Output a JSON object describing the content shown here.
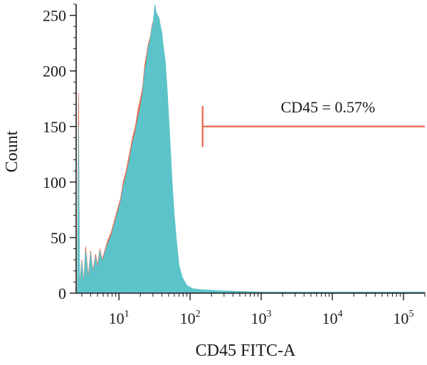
{
  "chart_data": {
    "type": "area",
    "title": "",
    "xlabel": "CD45 FITC-A",
    "ylabel": "Count",
    "x_scale": "log",
    "xlim": [
      2.5,
      200000
    ],
    "ylim": [
      0,
      260
    ],
    "grid": false,
    "x_ticks": [
      {
        "value": 10,
        "base": "10",
        "exp": "1"
      },
      {
        "value": 100,
        "base": "10",
        "exp": "2"
      },
      {
        "value": 1000,
        "base": "10",
        "exp": "3"
      },
      {
        "value": 10000,
        "base": "10",
        "exp": "4"
      },
      {
        "value": 100000,
        "base": "10",
        "exp": "5"
      }
    ],
    "y_ticks": [
      0,
      50,
      100,
      150,
      200,
      250
    ],
    "series": [
      {
        "color": "#e8654a",
        "x": [
          2.6,
          2.7,
          2.8,
          3,
          3.2,
          3.4,
          3.7,
          4,
          4.3,
          4.7,
          5,
          5.4,
          5.8,
          6.3,
          7,
          7.8,
          8.6,
          9.5,
          10.5,
          11.5,
          12.6,
          14,
          15.5,
          17,
          18.5,
          20,
          21.5,
          23,
          24.5,
          26,
          27.5,
          29,
          30.5,
          32,
          33.5,
          35,
          36.5,
          38,
          40,
          42,
          45,
          48,
          52,
          56,
          60,
          65,
          70,
          78,
          90,
          110,
          150,
          300,
          1000,
          10000,
          100000,
          200000
        ],
        "y": [
          0,
          180,
          5,
          30,
          10,
          42,
          15,
          38,
          20,
          35,
          25,
          40,
          30,
          38,
          48,
          55,
          65,
          75,
          85,
          100,
          110,
          125,
          140,
          150,
          165,
          175,
          185,
          205,
          215,
          225,
          230,
          240,
          246,
          255,
          250,
          248,
          245,
          238,
          225,
          215,
          200,
          170,
          130,
          95,
          65,
          40,
          22,
          12,
          6,
          3,
          2,
          2,
          1,
          1,
          1,
          1
        ]
      },
      {
        "color": "#5bc3c9",
        "x": [
          2.6,
          2.7,
          2.8,
          3,
          3.2,
          3.4,
          3.7,
          4,
          4.3,
          4.7,
          5,
          5.4,
          5.8,
          6.3,
          7,
          7.8,
          8.6,
          9.5,
          10.5,
          11.5,
          12.6,
          14,
          15.5,
          17,
          18.5,
          20,
          21.5,
          23,
          24.5,
          26,
          27.5,
          29,
          30.5,
          32,
          33.5,
          35,
          36.5,
          38,
          40,
          42,
          45,
          48,
          52,
          56,
          60,
          65,
          70,
          78,
          90,
          110,
          150,
          300,
          1000,
          10000,
          100000,
          200000
        ],
        "y": [
          0,
          150,
          3,
          28,
          8,
          38,
          12,
          36,
          18,
          33,
          22,
          38,
          28,
          36,
          45,
          52,
          62,
          72,
          82,
          96,
          106,
          120,
          135,
          145,
          158,
          168,
          180,
          200,
          210,
          222,
          228,
          238,
          245,
          260,
          252,
          250,
          248,
          242,
          235,
          222,
          208,
          180,
          140,
          100,
          70,
          45,
          25,
          14,
          7,
          4,
          3,
          2,
          1,
          1,
          1,
          1
        ]
      }
    ],
    "gate": {
      "label": "CD45 = 0.57%",
      "x_start": 150,
      "x_end": 200000,
      "y": 150,
      "color": "#e8654a"
    }
  }
}
